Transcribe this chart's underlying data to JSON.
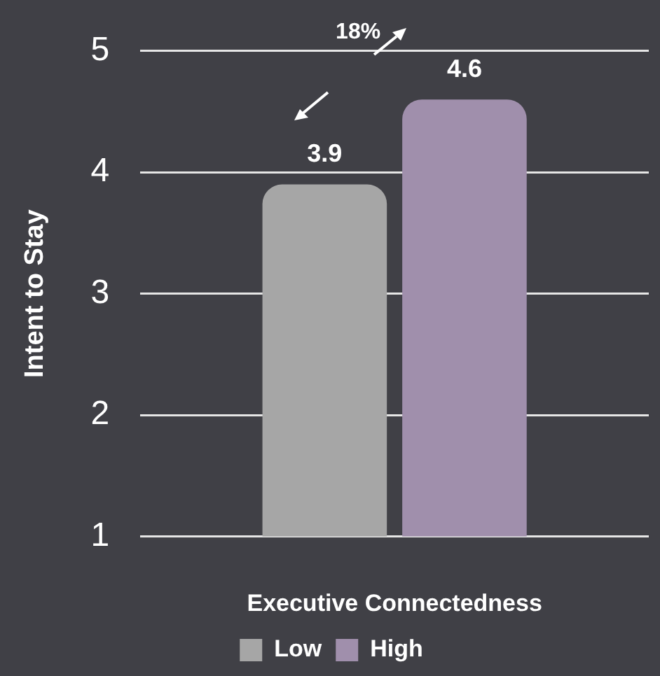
{
  "chart_data": {
    "type": "bar",
    "xlabel": "Executive Connectedness",
    "ylabel": "Intent to Stay",
    "categories": [
      null
    ],
    "series": [
      {
        "name": "Low",
        "color": "#a6a6a6",
        "values": [
          3.9
        ]
      },
      {
        "name": "High",
        "color": "#a08fac",
        "values": [
          4.6
        ]
      }
    ],
    "ylim": [
      1,
      5
    ],
    "yticks": [
      1,
      2,
      3,
      4,
      5
    ],
    "grid": "y",
    "legend": "bottom",
    "data_labels": true,
    "annotations": [
      "18%"
    ]
  }
}
